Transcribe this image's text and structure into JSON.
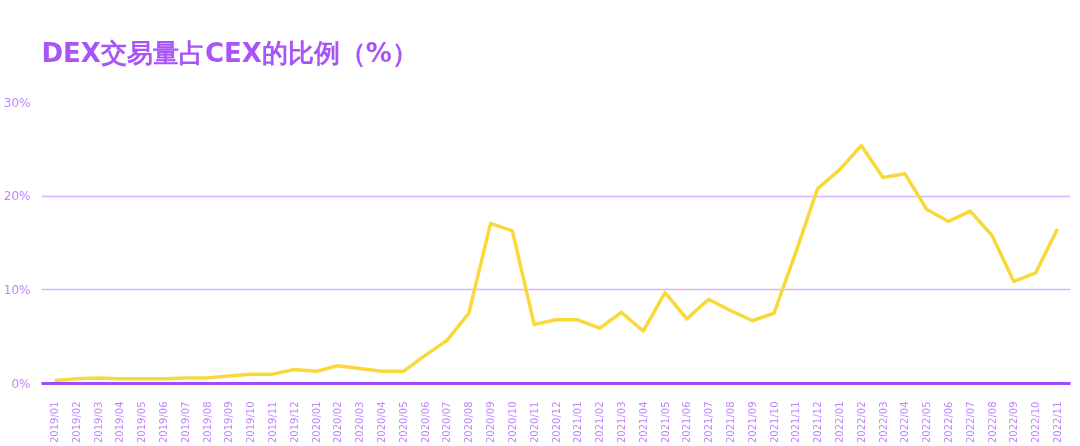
{
  "chart_data": {
    "type": "line",
    "title": "DEX交易量占CEX的比例（%）",
    "categories": [
      "2019/01",
      "2019/02",
      "2019/03",
      "2019/04",
      "2019/05",
      "2019/06",
      "2019/07",
      "2019/08",
      "2019/09",
      "2019/10",
      "2019/11",
      "2019/12",
      "2020/01",
      "2020/02",
      "2020/03",
      "2020/04",
      "2020/05",
      "2020/06",
      "2020/07",
      "2020/08",
      "2020/09",
      "2020/10",
      "2020/11",
      "2020/12",
      "2021/01",
      "2021/02",
      "2021/03",
      "2021/04",
      "2021/05",
      "2021/06",
      "2021/07",
      "2021/08",
      "2021/09",
      "2021/10",
      "2021/11",
      "2021/12",
      "2022/01",
      "2022/02",
      "2022/03",
      "2022/04",
      "2022/05",
      "2022/06",
      "2022/07",
      "2022/08",
      "2022/09",
      "2022/10",
      "2022/11"
    ],
    "series": [
      {
        "color": "#f9d93a",
        "values": [
          0.3,
          0.5,
          0.6,
          0.5,
          0.5,
          0.5,
          0.6,
          0.6,
          0.8,
          1.0,
          1.0,
          1.5,
          1.3,
          1.9,
          1.6,
          1.3,
          1.3,
          3.0,
          4.6,
          7.5,
          17.1,
          16.3,
          6.3,
          6.8,
          6.8,
          5.9,
          7.6,
          5.6,
          9.7,
          6.9,
          9.0,
          7.8,
          6.7,
          7.5,
          14.0,
          20.8,
          22.8,
          25.4,
          22.0,
          22.4,
          18.6,
          17.3,
          18.4,
          15.8,
          10.9,
          11.8,
          16.5
        ]
      }
    ],
    "ylim": [
      0,
      30
    ],
    "yticks": [
      {
        "value": 0,
        "label": "0%"
      },
      {
        "value": 10,
        "label": "10%"
      },
      {
        "value": 20,
        "label": "20%"
      },
      {
        "value": 30,
        "label": "30%"
      }
    ],
    "grid": "y",
    "marker": "none",
    "line_style": "solid"
  }
}
